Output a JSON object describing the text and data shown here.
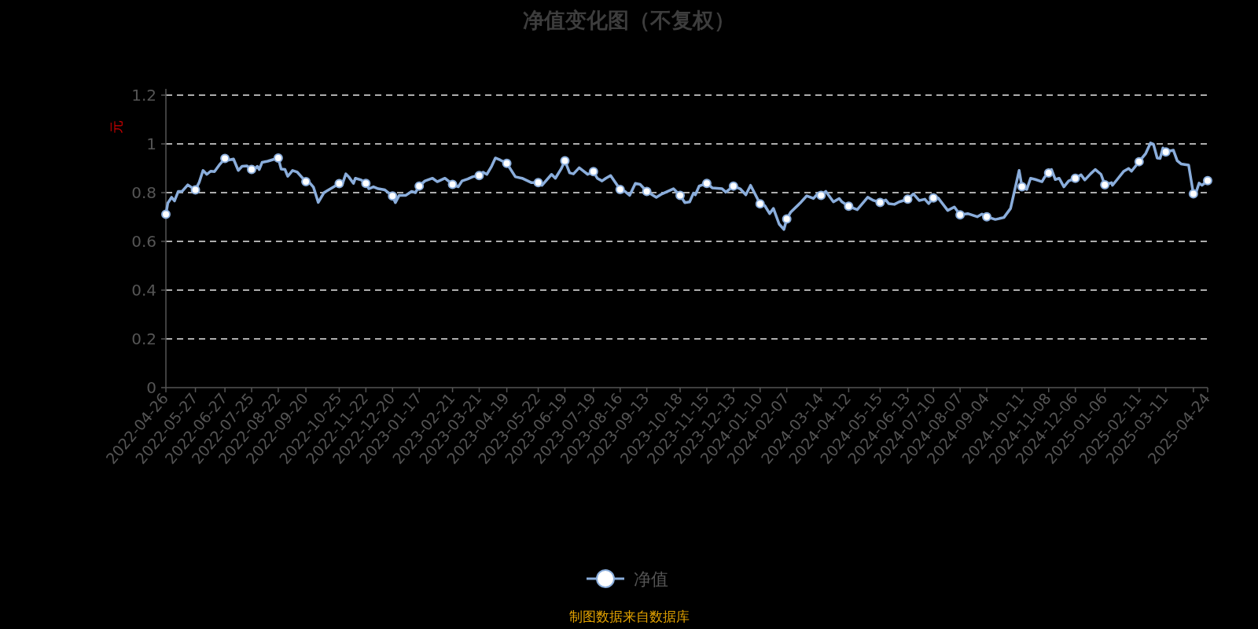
{
  "chart_data": {
    "type": "line",
    "title": "净值变化图（不复权）",
    "ylabel": "元",
    "annotations": [
      "制图数据来自数据库"
    ],
    "legend": "bottom",
    "grid": "y",
    "line_style": "solid",
    "xlim": [
      "2022-04-26",
      "2025-04-24"
    ],
    "ylim": [
      0,
      1.2
    ],
    "yticks": [
      0,
      0.2,
      0.4,
      0.6,
      0.8,
      1,
      1.2
    ],
    "xticks": [
      "2022-04-26",
      "2022-05-27",
      "2022-06-27",
      "2022-07-25",
      "2022-08-22",
      "2022-09-20",
      "2022-10-25",
      "2022-11-22",
      "2022-12-20",
      "2023-01-17",
      "2023-02-21",
      "2023-03-21",
      "2023-04-19",
      "2023-05-22",
      "2023-06-19",
      "2023-07-19",
      "2023-08-16",
      "2023-09-13",
      "2023-10-18",
      "2023-11-15",
      "2023-12-13",
      "2024-01-10",
      "2024-02-07",
      "2024-03-14",
      "2024-04-12",
      "2024-05-15",
      "2024-06-13",
      "2024-07-10",
      "2024-08-07",
      "2024-09-04",
      "2024-10-11",
      "2024-11-08",
      "2024-12-06",
      "2025-01-06",
      "2025-02-11",
      "2025-03-11",
      {
        "value": "2025-04-09",
        "label": null
      },
      "2025-04-24"
    ],
    "x": [
      "2022-04-26",
      "2022-04-28",
      "2022-05-02",
      "2022-05-05",
      "2022-05-09",
      "2022-05-13",
      "2022-05-19",
      "2022-05-27",
      "2022-05-31",
      "2022-06-04",
      "2022-06-08",
      "2022-06-12",
      "2022-06-16",
      "2022-06-21",
      "2022-06-27",
      "2022-07-01",
      "2022-07-06",
      "2022-07-11",
      "2022-07-15",
      "2022-07-20",
      "2022-07-25",
      "2022-07-29",
      "2022-07-31",
      "2022-08-02",
      "2022-08-05",
      "2022-08-11",
      "2022-08-15",
      "2022-08-22",
      "2022-08-25",
      "2022-08-29",
      "2022-09-01",
      "2022-09-06",
      "2022-09-11",
      "2022-09-20",
      "2022-09-23",
      "2022-09-28",
      "2022-10-03",
      "2022-10-09",
      "2022-10-25",
      "2022-10-28",
      "2022-11-01",
      "2022-11-04",
      "2022-11-09",
      "2022-11-11",
      "2022-11-17",
      "2022-11-22",
      "2022-11-25",
      "2022-11-30",
      "2022-12-05",
      "2022-12-12",
      "2022-12-20",
      "2022-12-23",
      "2022-12-27",
      "2023-01-03",
      "2023-01-09",
      "2023-01-13",
      "2023-01-17",
      "2023-01-23",
      "2023-01-31",
      "2023-02-05",
      "2023-02-13",
      "2023-02-21",
      "2023-02-27",
      "2023-03-03",
      "2023-03-09",
      "2023-03-14",
      "2023-03-21",
      "2023-03-25",
      "2023-03-29",
      "2023-04-03",
      "2023-04-07",
      "2023-04-12",
      "2023-04-19",
      "2023-04-28",
      "2023-05-05",
      "2023-05-15",
      "2023-05-22",
      "2023-05-26",
      "2023-06-05",
      "2023-06-09",
      "2023-06-15",
      "2023-06-19",
      "2023-06-24",
      "2023-06-28",
      "2023-07-04",
      "2023-07-13",
      "2023-07-19",
      "2023-07-23",
      "2023-07-28",
      "2023-08-01",
      "2023-08-06",
      "2023-08-16",
      "2023-08-21",
      "2023-08-26",
      "2023-09-01",
      "2023-09-06",
      "2023-09-13",
      "2023-09-23",
      "2023-09-29",
      "2023-10-11",
      "2023-10-18",
      "2023-10-23",
      "2023-10-28",
      "2023-11-01",
      "2023-11-03",
      "2023-11-07",
      "2023-11-15",
      "2023-11-21",
      "2023-12-01",
      "2023-12-05",
      "2023-12-13",
      "2023-12-20",
      "2023-12-26",
      "2023-12-31",
      "2024-01-10",
      "2024-01-15",
      "2024-01-20",
      "2024-01-24",
      "2024-01-30",
      "2024-02-04",
      "2024-02-07",
      "2024-02-11",
      "2024-02-21",
      "2024-02-28",
      "2024-03-06",
      "2024-03-11",
      "2024-03-14",
      "2024-03-19",
      "2024-03-27",
      "2024-04-02",
      "2024-04-05",
      "2024-04-12",
      "2024-04-21",
      "2024-05-02",
      "2024-05-08",
      "2024-05-15",
      "2024-05-21",
      "2024-05-24",
      "2024-05-30",
      "2024-06-04",
      "2024-06-13",
      "2024-06-19",
      "2024-06-25",
      "2024-07-01",
      "2024-07-05",
      "2024-07-10",
      "2024-07-15",
      "2024-07-25",
      "2024-08-01",
      "2024-08-07",
      "2024-08-15",
      "2024-08-25",
      "2024-08-30",
      "2024-09-04",
      "2024-09-13",
      "2024-09-22",
      "2024-09-29",
      "2024-10-08",
      "2024-10-11",
      "2024-10-16",
      "2024-10-20",
      "2024-10-25",
      "2024-11-01",
      "2024-11-04",
      "2024-11-08",
      "2024-11-11",
      "2024-11-15",
      "2024-11-19",
      "2024-11-24",
      "2024-11-29",
      "2024-12-06",
      "2024-12-12",
      "2024-12-16",
      "2024-12-22",
      "2024-12-27",
      "2025-01-02",
      "2025-01-06",
      "2025-01-13",
      "2025-01-14",
      "2025-01-19",
      "2025-01-26",
      "2025-01-31",
      "2025-02-03",
      "2025-02-11",
      "2025-02-18",
      "2025-02-23",
      "2025-02-26",
      "2025-03-02",
      "2025-03-05",
      "2025-03-08",
      "2025-03-11",
      "2025-03-19",
      "2025-03-23",
      "2025-03-27",
      "2025-04-04",
      "2025-04-09",
      "2025-04-11",
      "2025-04-15",
      "2025-04-18",
      "2025-04-24"
    ],
    "series": [
      {
        "name": "净值",
        "color": "#8aaddb",
        "values": [
          0.711,
          0.757,
          0.781,
          0.766,
          0.805,
          0.805,
          0.832,
          0.811,
          0.843,
          0.891,
          0.875,
          0.888,
          0.886,
          0.913,
          0.94,
          0.934,
          0.938,
          0.891,
          0.908,
          0.91,
          0.895,
          0.899,
          0.908,
          0.895,
          0.924,
          0.929,
          0.934,
          0.942,
          0.897,
          0.895,
          0.867,
          0.891,
          0.884,
          0.845,
          0.845,
          0.822,
          0.76,
          0.8,
          0.837,
          0.832,
          0.877,
          0.865,
          0.838,
          0.859,
          0.852,
          0.838,
          0.816,
          0.824,
          0.816,
          0.811,
          0.786,
          0.759,
          0.789,
          0.789,
          0.805,
          0.8,
          0.827,
          0.848,
          0.859,
          0.845,
          0.859,
          0.834,
          0.824,
          0.848,
          0.856,
          0.865,
          0.87,
          0.884,
          0.875,
          0.908,
          0.942,
          0.934,
          0.92,
          0.865,
          0.859,
          0.841,
          0.841,
          0.83,
          0.875,
          0.859,
          0.897,
          0.931,
          0.881,
          0.877,
          0.902,
          0.875,
          0.886,
          0.859,
          0.848,
          0.859,
          0.87,
          0.813,
          0.805,
          0.789,
          0.838,
          0.834,
          0.805,
          0.781,
          0.795,
          0.816,
          0.789,
          0.759,
          0.762,
          0.798,
          0.791,
          0.827,
          0.838,
          0.819,
          0.816,
          0.802,
          0.827,
          0.816,
          0.791,
          0.83,
          0.754,
          0.746,
          0.714,
          0.735,
          0.671,
          0.649,
          0.692,
          0.719,
          0.757,
          0.787,
          0.776,
          0.798,
          0.789,
          0.805,
          0.762,
          0.776,
          0.762,
          0.744,
          0.73,
          0.781,
          0.768,
          0.76,
          0.77,
          0.755,
          0.752,
          0.762,
          0.773,
          0.795,
          0.768,
          0.773,
          0.755,
          0.778,
          0.778,
          0.727,
          0.741,
          0.709,
          0.714,
          0.701,
          0.712,
          0.701,
          0.69,
          0.698,
          0.735,
          0.891,
          0.824,
          0.813,
          0.859,
          0.854,
          0.845,
          0.865,
          0.881,
          0.895,
          0.854,
          0.859,
          0.824,
          0.848,
          0.859,
          0.873,
          0.852,
          0.877,
          0.895,
          0.875,
          0.832,
          0.841,
          0.83,
          0.854,
          0.888,
          0.899,
          0.888,
          0.927,
          0.961,
          1.004,
          0.999,
          0.942,
          0.94,
          0.983,
          0.967,
          0.974,
          0.931,
          0.918,
          0.913,
          0.795,
          0.792,
          0.839,
          0.83,
          0.849
        ]
      }
    ]
  }
}
